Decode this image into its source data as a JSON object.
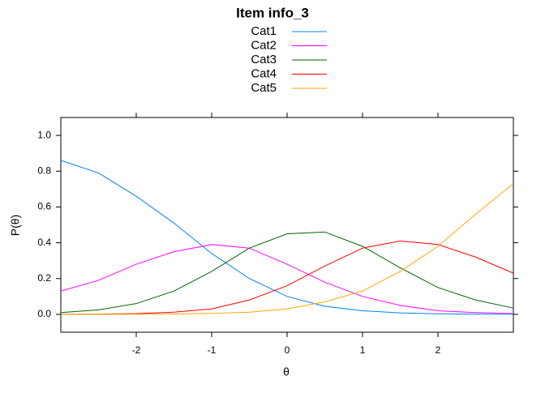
{
  "chart_data": {
    "type": "line",
    "title": "Item info_3",
    "xlabel": "θ",
    "ylabel": "P(θ)",
    "x": [
      -3,
      -2.5,
      -2,
      -1.5,
      -1,
      -0.5,
      0,
      0.5,
      1,
      1.5,
      2,
      2.5,
      3
    ],
    "series": [
      {
        "name": "Cat1",
        "color": "#0080ff",
        "values": [
          0.86,
          0.79,
          0.66,
          0.51,
          0.34,
          0.2,
          0.1,
          0.045,
          0.02,
          0.008,
          0.003,
          0.001,
          0.0
        ]
      },
      {
        "name": "Cat2",
        "color": "#ff00ff",
        "values": [
          0.13,
          0.19,
          0.28,
          0.35,
          0.39,
          0.37,
          0.28,
          0.18,
          0.1,
          0.05,
          0.02,
          0.01,
          0.005
        ]
      },
      {
        "name": "Cat3",
        "color": "#006400",
        "values": [
          0.01,
          0.025,
          0.06,
          0.13,
          0.24,
          0.37,
          0.45,
          0.46,
          0.38,
          0.26,
          0.15,
          0.08,
          0.035
        ]
      },
      {
        "name": "Cat4",
        "color": "#ff0000",
        "values": [
          0.0,
          0.001,
          0.004,
          0.012,
          0.03,
          0.08,
          0.16,
          0.27,
          0.37,
          0.41,
          0.39,
          0.32,
          0.23
        ]
      },
      {
        "name": "Cat5",
        "color": "#ffa500",
        "values": [
          0.0,
          0.0,
          0.001,
          0.002,
          0.005,
          0.012,
          0.03,
          0.07,
          0.13,
          0.24,
          0.38,
          0.56,
          0.73
        ]
      }
    ],
    "xlim": [
      -3,
      3
    ],
    "ylim": [
      -0.1,
      1.1
    ],
    "xticks": [
      -2,
      -1,
      0,
      1,
      2
    ],
    "yticks": [
      {
        "value": 0,
        "label": "0.0"
      },
      {
        "value": 0.2,
        "label": "0.2"
      },
      {
        "value": 0.4,
        "label": "0.4"
      },
      {
        "value": 0.6,
        "label": "0.6"
      },
      {
        "value": 0.8,
        "label": "0.8"
      },
      {
        "value": 1,
        "label": "1.0"
      }
    ],
    "legend": "top"
  }
}
